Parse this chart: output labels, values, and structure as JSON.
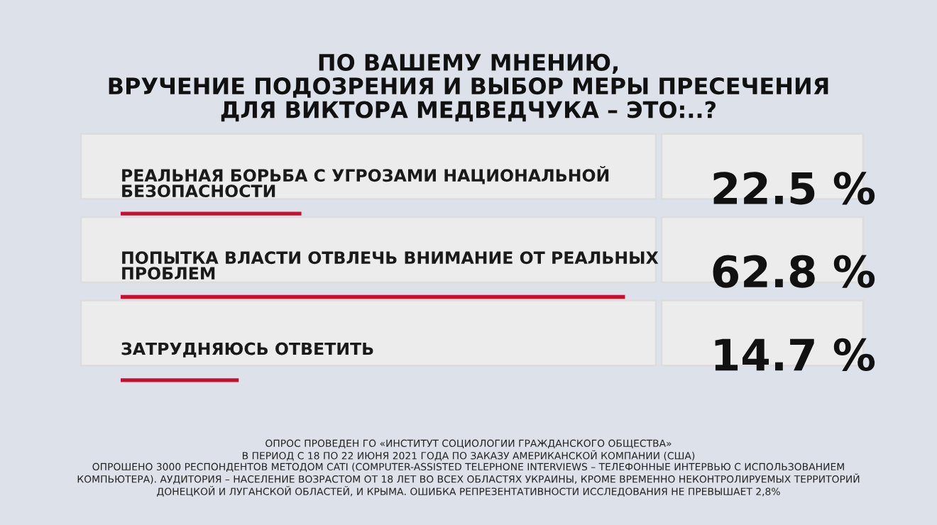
{
  "chart_data": {
    "type": "bar",
    "orientation": "horizontal",
    "title": "ПО ВАШЕМУ МНЕНИЮ,\nВРУЧЕНИЕ ПОДОЗРЕНИЯ И ВЫБОР МЕРЫ ПРЕСЕЧЕНИЯ\nДЛЯ ВИКТОРА МЕДВЕДЧУКА – ЭТО:..?",
    "categories": [
      "РЕАЛЬНАЯ БОРЬБА С УГРОЗАМИ НАЦИОНАЛЬНОЙ\nБЕЗОПАСНОСТИ",
      "ПОПЫТКА ВЛАСТИ ОТВЛЕЧЬ ВНИМАНИЕ ОТ РЕАЛЬНЫХ\nПРОБЛЕМ",
      "ЗАТРУДНЯЮСЬ ОТВЕТИТЬ"
    ],
    "values": [
      22.5,
      62.8,
      14.7
    ],
    "value_labels": [
      "22.5 %",
      "62.8 %",
      "14.7 %"
    ],
    "color": "#c8102e",
    "annotations": [
      "ОПРОС ПРОВЕДЕН ГО «ИНСТИТУТ СОЦИОЛОГИИ ГРАЖДАНСКОГО ОБЩЕСТВА»\nВ ПЕРИОД С 18 ПО 22 ИЮНЯ 2021 ГОДА ПО ЗАКАЗУ АМЕРИКАНСКОЙ КОМПАНИИ (США)\nОПРОШЕНО 3000 РЕСПОНДЕНТОВ МЕТОДОМ CATI (COMPUTER-ASSISTED TELEPHONE INTERVIEWS – ТЕЛЕФОННЫЕ ИНТЕРВЬЮ С ИСПОЛЬЗОВАНИЕМ\nКОМПЬЮТЕРА). АУДИТОРИЯ – НАСЕЛЕНИЕ ВОЗРАСТОМ ОТ 18 ЛЕТ ВО ВСЕХ ОБЛАСТЯХ УКРАИНЫ, КРОМЕ ВРЕМЕННО НЕКОНТРОЛИРУЕМЫХ ТЕРРИТОРИЙ\nДОНЕЦКОЙ И ЛУГАНСКОЙ ОБЛАСТЕЙ, И КРЫМА. ОШИБКА РЕПРЕЗЕНТАТИВНОСТИ ИССЛЕДОВАНИЯ НЕ ПРЕВЫШАЕТ 2,8%"
    ]
  }
}
